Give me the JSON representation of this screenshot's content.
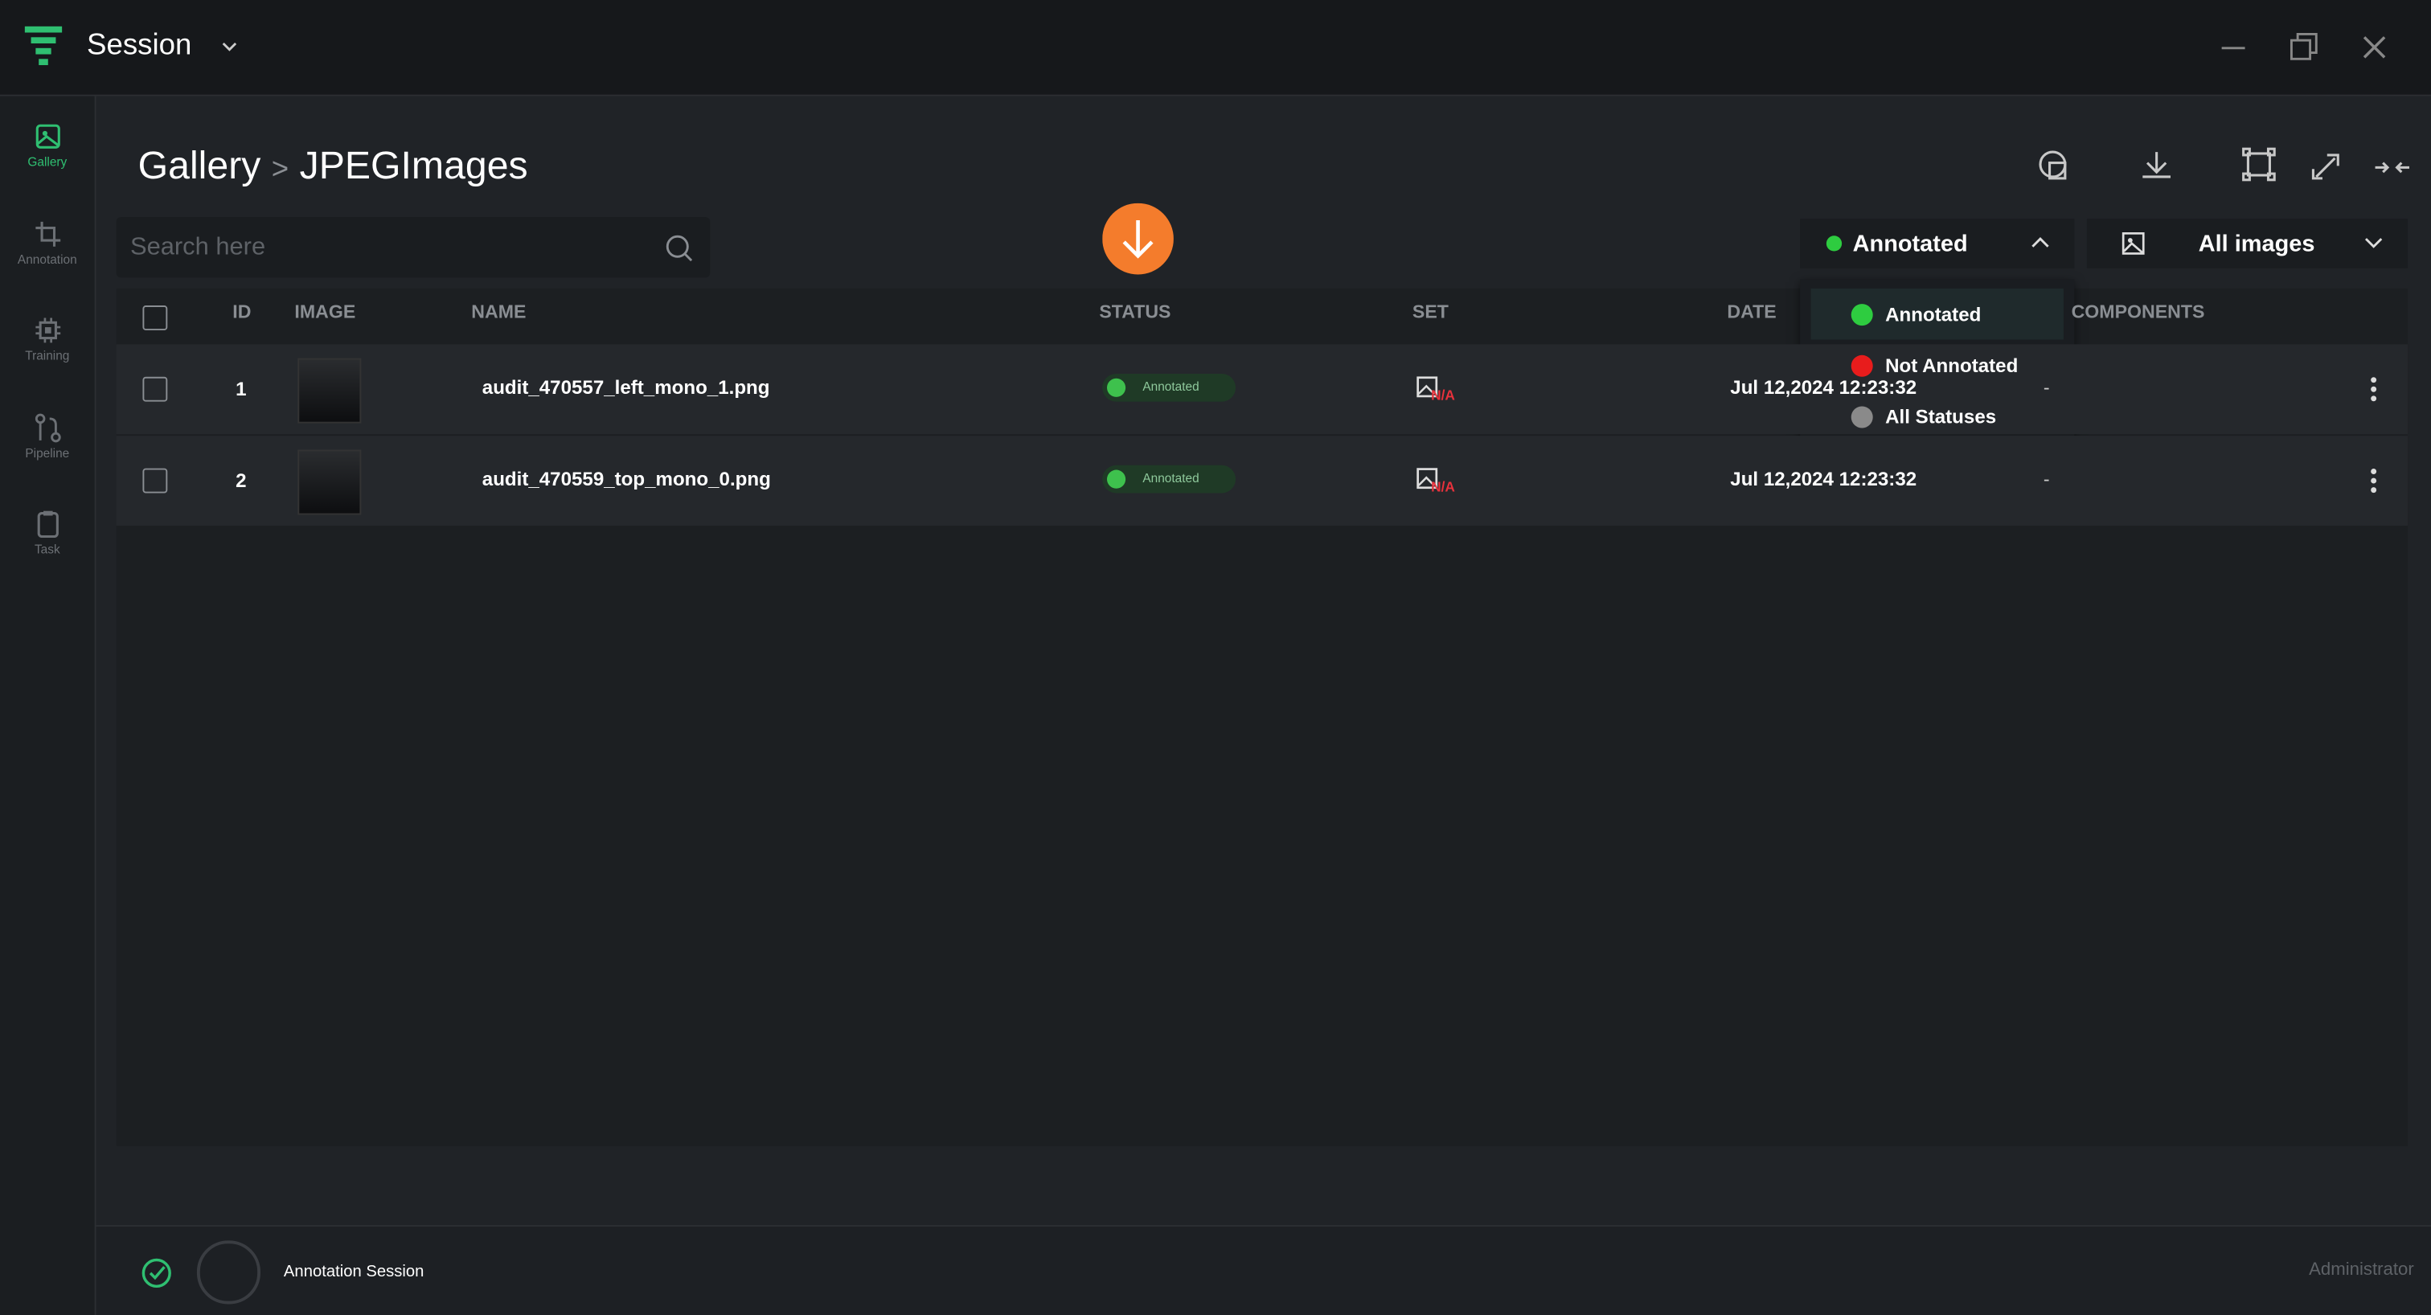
{
  "header": {
    "app_title": "Session"
  },
  "sidebar": {
    "items": [
      "Gallery",
      "Annotation",
      "Training",
      "Pipeline",
      "Task"
    ]
  },
  "breadcrumb": {
    "root": "Gallery",
    "separator": ">",
    "current": "JPEGImages"
  },
  "search": {
    "placeholder": "Search here"
  },
  "filters": {
    "status": "Annotated",
    "images": "All images"
  },
  "status_menu": {
    "options": [
      "Annotated",
      "Not Annotated",
      "All Statuses"
    ]
  },
  "table": {
    "columns": [
      "ID",
      "IMAGE",
      "NAME",
      "STATUS",
      "SET",
      "DATE",
      "COMPONENTS"
    ],
    "rows": [
      [
        "1",
        "audit_470557_left_mono_1.png",
        "Annotated",
        "N/A",
        "Jul 12,2024 12:23:32",
        "-"
      ],
      [
        "2",
        "audit_470559_top_mono_0.png",
        "Annotated",
        "N/A",
        "Jul 12,2024 12:23:32",
        "-"
      ]
    ]
  },
  "footer": {
    "session": "Annotation Session",
    "user": "Administrator"
  }
}
